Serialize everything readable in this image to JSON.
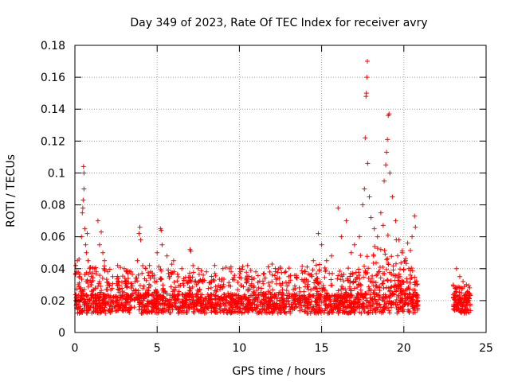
{
  "chart_data": {
    "type": "scatter",
    "title": "Day 349 of 2023, Rate Of TEC Index for receiver avry",
    "xlabel": "GPS time / hours",
    "ylabel": "ROTI / TECUs",
    "xlim": [
      0,
      25
    ],
    "ylim": [
      0,
      0.18
    ],
    "xticks": [
      0,
      5,
      10,
      15,
      20,
      25
    ],
    "xtick_labels": [
      "0",
      "5",
      "10",
      "15",
      "20",
      "25"
    ],
    "yticks": [
      0,
      0.02,
      0.04,
      0.06,
      0.08,
      0.1,
      0.12,
      0.14,
      0.16,
      0.18
    ],
    "ytick_labels": [
      "0",
      "0.02",
      "0.04",
      "0.06",
      "0.08",
      "0.1",
      "0.12",
      "0.14",
      "0.16",
      "0.18"
    ],
    "grid": true,
    "marker": "+",
    "color": "#ff0000",
    "data_gaps_hours": [
      [
        20.9,
        23.0
      ]
    ],
    "series": [
      {
        "points": [
          [
            0.05,
            0.042
          ],
          [
            0.1,
            0.038
          ],
          [
            0.15,
            0.045
          ],
          [
            0.2,
            0.03
          ],
          [
            0.25,
            0.046
          ],
          [
            0.3,
            0.035
          ],
          [
            0.35,
            0.028
          ],
          [
            0.4,
            0.06
          ],
          [
            0.45,
            0.075
          ],
          [
            0.48,
            0.078
          ],
          [
            0.5,
            0.083
          ],
          [
            0.52,
            0.104
          ],
          [
            0.55,
            0.1
          ],
          [
            0.55,
            0.09
          ],
          [
            0.6,
            0.065
          ],
          [
            0.65,
            0.055
          ],
          [
            0.7,
            0.05
          ],
          [
            0.75,
            0.062
          ],
          [
            0.8,
            0.045
          ],
          [
            0.9,
            0.04
          ],
          [
            1.0,
            0.035
          ],
          [
            1.2,
            0.04
          ],
          [
            1.4,
            0.07
          ],
          [
            1.5,
            0.055
          ],
          [
            1.6,
            0.063
          ],
          [
            1.7,
            0.05
          ],
          [
            1.8,
            0.045
          ],
          [
            2.0,
            0.038
          ],
          [
            2.3,
            0.035
          ],
          [
            2.6,
            0.042
          ],
          [
            3.0,
            0.04
          ],
          [
            3.4,
            0.038
          ],
          [
            3.8,
            0.045
          ],
          [
            3.9,
            0.062
          ],
          [
            3.95,
            0.066
          ],
          [
            4.0,
            0.058
          ],
          [
            4.3,
            0.04
          ],
          [
            4.6,
            0.038
          ],
          [
            5.0,
            0.05
          ],
          [
            5.2,
            0.065
          ],
          [
            5.25,
            0.064
          ],
          [
            5.3,
            0.055
          ],
          [
            5.6,
            0.048
          ],
          [
            6.0,
            0.045
          ],
          [
            6.5,
            0.04
          ],
          [
            7.0,
            0.052
          ],
          [
            7.05,
            0.051
          ],
          [
            7.5,
            0.04
          ],
          [
            8.0,
            0.038
          ],
          [
            8.5,
            0.042
          ],
          [
            9.0,
            0.04
          ],
          [
            9.5,
            0.038
          ],
          [
            10.0,
            0.04
          ],
          [
            10.5,
            0.042
          ],
          [
            11.0,
            0.038
          ],
          [
            11.5,
            0.037
          ],
          [
            12.0,
            0.036
          ],
          [
            12.5,
            0.04
          ],
          [
            13.0,
            0.035
          ],
          [
            13.5,
            0.034
          ],
          [
            14.0,
            0.038
          ],
          [
            14.5,
            0.045
          ],
          [
            14.8,
            0.062
          ],
          [
            15.0,
            0.055
          ],
          [
            15.3,
            0.045
          ],
          [
            15.6,
            0.048
          ],
          [
            16.0,
            0.078
          ],
          [
            16.2,
            0.06
          ],
          [
            16.5,
            0.07
          ],
          [
            16.8,
            0.05
          ],
          [
            17.0,
            0.055
          ],
          [
            17.3,
            0.06
          ],
          [
            17.5,
            0.08
          ],
          [
            17.6,
            0.09
          ],
          [
            17.65,
            0.122
          ],
          [
            17.7,
            0.148
          ],
          [
            17.72,
            0.15
          ],
          [
            17.75,
            0.16
          ],
          [
            17.78,
            0.17
          ],
          [
            17.8,
            0.106
          ],
          [
            17.9,
            0.085
          ],
          [
            18.0,
            0.072
          ],
          [
            18.2,
            0.065
          ],
          [
            18.4,
            0.06
          ],
          [
            18.6,
            0.075
          ],
          [
            18.8,
            0.095
          ],
          [
            18.9,
            0.105
          ],
          [
            18.95,
            0.113
          ],
          [
            19.0,
            0.121
          ],
          [
            19.05,
            0.136
          ],
          [
            19.1,
            0.137
          ],
          [
            19.15,
            0.1
          ],
          [
            19.3,
            0.085
          ],
          [
            19.5,
            0.07
          ],
          [
            19.7,
            0.058
          ],
          [
            19.9,
            0.05
          ],
          [
            20.1,
            0.045
          ],
          [
            20.3,
            0.04
          ],
          [
            20.5,
            0.06
          ],
          [
            20.65,
            0.073
          ],
          [
            20.7,
            0.066
          ],
          [
            20.8,
            0.03
          ],
          [
            23.2,
            0.04
          ],
          [
            23.4,
            0.035
          ],
          [
            23.6,
            0.032
          ],
          [
            23.8,
            0.03
          ],
          [
            24.0,
            0.028
          ]
        ]
      }
    ]
  }
}
